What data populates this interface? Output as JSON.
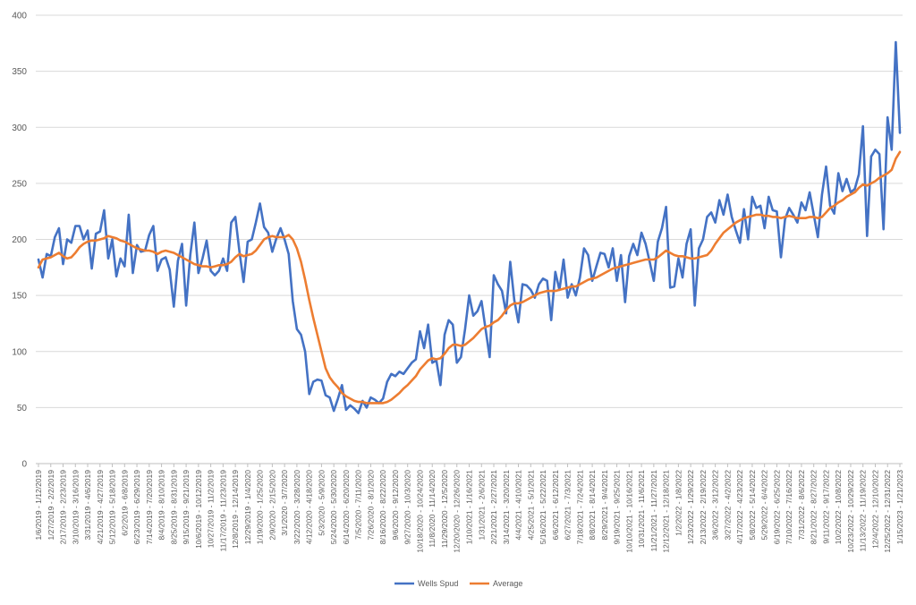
{
  "chart_data": {
    "type": "line",
    "title": "",
    "xlabel": "",
    "ylabel": "",
    "ylim": [
      0,
      400
    ],
    "y_ticks": [
      0,
      50,
      100,
      150,
      200,
      250,
      300,
      350,
      400
    ],
    "grid": "horizontal",
    "legend_position": "bottom",
    "category_labels": [
      "1/6/2019 - 1/12/2019",
      "1/27/2019 - 2/2/2019",
      "2/17/2019 - 2/23/2019",
      "3/10/2019 - 3/16/2019",
      "3/31/2019 - 4/6/2019",
      "4/21/2019 - 4/27/2019",
      "5/12/2019 - 5/18/2019",
      "6/2/2019 - 6/8/2019",
      "6/23/2019 - 6/29/2019",
      "7/14/2019 - 7/20/2019",
      "8/4/2019 - 8/10/2019",
      "8/25/2019 - 8/31/2019",
      "9/15/2019 - 9/21/2019",
      "10/6/2019 - 10/12/2019",
      "10/27/2019 - 11/2/2019",
      "11/17/2019 - 11/23/2019",
      "12/8/2019 - 12/14/2019",
      "12/29/2019 - 1/4/2020",
      "1/19/2020 - 1/25/2020",
      "2/9/2020 - 2/15/2020",
      "3/1/2020 - 3/7/2020",
      "3/22/2020 - 3/28/2020",
      "4/12/2020 - 4/18/2020",
      "5/3/2020 - 5/9/2020",
      "5/24/2020 - 5/30/2020",
      "6/14/2020 - 6/20/2020",
      "7/5/2020 - 7/11/2020",
      "7/26/2020 - 8/1/2020",
      "8/16/2020 - 8/22/2020",
      "9/6/2020 - 9/12/2020",
      "9/27/2020 - 10/3/2020",
      "10/18/2020 - 10/24/2020",
      "11/8/2020 - 11/14/2020",
      "11/29/2020 - 12/5/2020",
      "12/20/2020 - 12/26/2020",
      "1/10/2021 - 1/16/2021",
      "1/31/2021 - 2/6/2021",
      "2/21/2021 - 2/27/2021",
      "3/14/2021 - 3/20/2021",
      "4/4/2021 - 4/10/2021",
      "4/25/2021 - 5/1/2021",
      "5/16/2021 - 5/22/2021",
      "6/6/2021 - 6/12/2021",
      "6/27/2021 - 7/3/2021",
      "7/18/2021 - 7/24/2021",
      "8/8/2021 - 8/14/2021",
      "8/29/2021 - 9/4/2021",
      "9/19/2021 - 9/25/2021",
      "10/10/2021 - 10/16/2021",
      "10/31/2021 - 11/6/2021",
      "11/21/2021 - 11/27/2021",
      "12/12/2021 - 12/18/2021",
      "1/2/2022 - 1/8/2022",
      "1/23/2022 - 1/29/2022",
      "2/13/2022 - 2/19/2022",
      "3/6/2022 - 3/12/2022",
      "3/27/2022 - 4/2/2022",
      "4/17/2022 - 4/23/2022",
      "5/8/2022 - 5/14/2022",
      "5/29/2022 - 6/4/2022",
      "6/19/2022 - 6/25/2022",
      "7/10/2022 - 7/16/2022",
      "7/31/2022 - 8/6/2022",
      "8/21/2022 - 8/27/2022",
      "9/11/2022 - 9/17/2022",
      "10/2/2022 - 10/8/2022",
      "10/23/2022 - 10/29/2022",
      "11/13/2022 - 11/19/2022",
      "12/4/2022 - 12/10/2022",
      "12/25/2022 - 12/31/2022",
      "1/15/2023 - 1/21/2023"
    ],
    "label_every": 3,
    "series": [
      {
        "name": "Wells Spud",
        "color": "#4472C4",
        "values": [
          182,
          166,
          187,
          185,
          202,
          210,
          178,
          200,
          197,
          212,
          212,
          200,
          208,
          174,
          205,
          207,
          226,
          183,
          200,
          167,
          183,
          176,
          222,
          170,
          195,
          189,
          190,
          204,
          212,
          172,
          182,
          184,
          173,
          140,
          181,
          196,
          141,
          186,
          215,
          170,
          183,
          199,
          172,
          168,
          172,
          183,
          172,
          215,
          220,
          189,
          162,
          198,
          200,
          215,
          232,
          211,
          206,
          189,
          201,
          210,
          200,
          187,
          145,
          120,
          115,
          100,
          62,
          73,
          75,
          74,
          61,
          59,
          47,
          58,
          70,
          48,
          52,
          49,
          45,
          56,
          50,
          59,
          57,
          54,
          58,
          73,
          80,
          78,
          82,
          80,
          85,
          90,
          93,
          118,
          103,
          124,
          90,
          92,
          70,
          115,
          128,
          124,
          90,
          95,
          120,
          150,
          132,
          136,
          145,
          120,
          95,
          168,
          160,
          154,
          134,
          180,
          146,
          126,
          160,
          159,
          155,
          148,
          160,
          165,
          163,
          128,
          171,
          155,
          182,
          148,
          160,
          150,
          166,
          192,
          186,
          163,
          176,
          188,
          187,
          175,
          192,
          163,
          186,
          144,
          185,
          196,
          186,
          206,
          196,
          180,
          163,
          198,
          210,
          229,
          157,
          158,
          183,
          166,
          196,
          209,
          141,
          192,
          200,
          220,
          224,
          215,
          235,
          222,
          240,
          220,
          208,
          197,
          227,
          200,
          238,
          228,
          230,
          210,
          238,
          226,
          225,
          184,
          218,
          228,
          222,
          215,
          233,
          226,
          242,
          222,
          202,
          240,
          265,
          230,
          223,
          259,
          243,
          254,
          242,
          245,
          258,
          301,
          203,
          274,
          280,
          276,
          209,
          309,
          280,
          376,
          295
        ]
      },
      {
        "name": "Average",
        "color": "#ED7D31",
        "values": [
          175,
          182,
          183,
          184,
          186,
          188,
          185,
          183,
          184,
          188,
          193,
          196,
          198,
          199,
          199,
          200,
          201,
          203,
          202,
          201,
          199,
          198,
          196,
          194,
          192,
          191,
          190,
          190,
          189,
          187,
          189,
          190,
          189,
          188,
          186,
          184,
          182,
          180,
          178,
          177,
          176,
          176,
          175,
          176,
          177,
          177,
          178,
          180,
          184,
          187,
          185,
          186,
          187,
          190,
          195,
          200,
          202,
          203,
          202,
          202,
          202,
          204,
          200,
          192,
          180,
          164,
          146,
          130,
          115,
          100,
          85,
          77,
          72,
          68,
          63,
          60,
          58,
          56,
          55,
          55,
          54,
          54,
          54,
          54,
          54,
          55,
          57,
          60,
          63,
          67,
          70,
          74,
          78,
          84,
          88,
          92,
          94,
          93,
          94,
          98,
          103,
          106,
          106,
          105,
          106,
          109,
          112,
          116,
          120,
          122,
          123,
          126,
          128,
          132,
          137,
          141,
          143,
          143,
          144,
          146,
          148,
          150,
          152,
          153,
          154,
          154,
          154,
          155,
          156,
          157,
          158,
          158,
          160,
          162,
          164,
          165,
          166,
          168,
          170,
          172,
          174,
          175,
          176,
          177,
          178,
          179,
          180,
          181,
          182,
          182,
          182,
          184,
          187,
          190,
          188,
          186,
          185,
          185,
          184,
          183,
          183,
          184,
          185,
          186,
          190,
          196,
          201,
          206,
          209,
          212,
          215,
          217,
          219,
          220,
          221,
          222,
          222,
          221,
          221,
          220,
          220,
          219,
          220,
          221,
          220,
          219,
          219,
          219,
          220,
          220,
          219,
          220,
          224,
          228,
          230,
          233,
          235,
          238,
          240,
          242,
          246,
          249,
          248,
          250,
          252,
          255,
          257,
          259,
          262,
          272,
          278
        ]
      }
    ]
  }
}
